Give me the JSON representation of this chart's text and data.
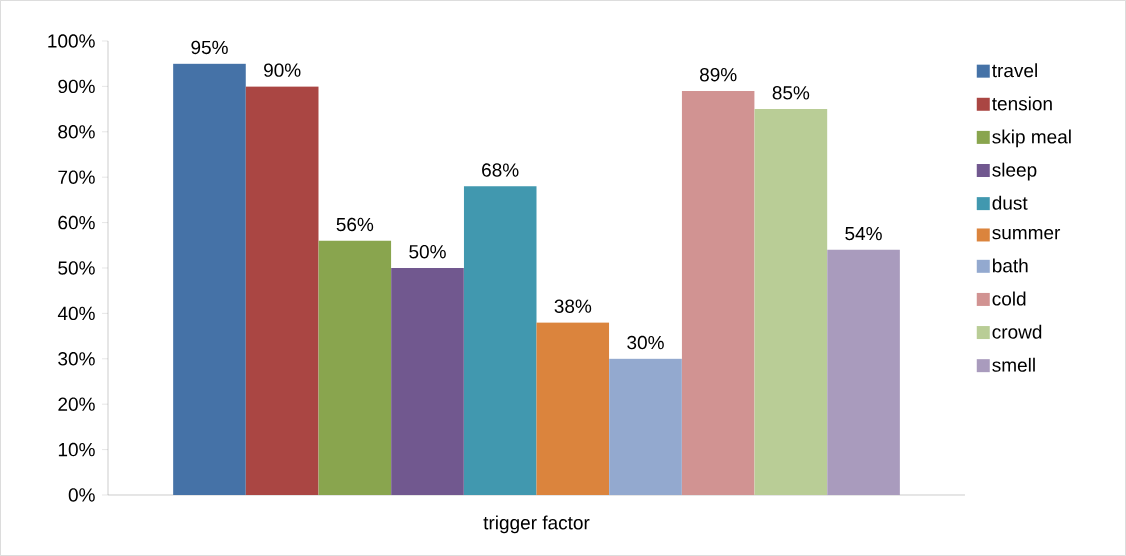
{
  "chart_data": {
    "type": "bar",
    "categories": [
      "trigger factor"
    ],
    "series": [
      {
        "name": "travel",
        "color": "#4572a7",
        "values": [
          95
        ],
        "value_labels": [
          "95%"
        ]
      },
      {
        "name": "tension",
        "color": "#aa4643",
        "values": [
          90
        ],
        "value_labels": [
          "90%"
        ]
      },
      {
        "name": "skip meal",
        "color": "#89a54e",
        "values": [
          56
        ],
        "value_labels": [
          "56%"
        ]
      },
      {
        "name": "sleep",
        "color": "#71588f",
        "values": [
          50
        ],
        "value_labels": [
          "50%"
        ]
      },
      {
        "name": "dust",
        "color": "#4198af",
        "values": [
          68
        ],
        "value_labels": [
          "68%"
        ]
      },
      {
        "name": "summer",
        "color": "#db843d",
        "values": [
          38
        ],
        "value_labels": [
          "38%"
        ]
      },
      {
        "name": "bath",
        "color": "#93a9cf",
        "values": [
          30
        ],
        "value_labels": [
          "30%"
        ]
      },
      {
        "name": "cold",
        "color": "#d19392",
        "values": [
          89
        ],
        "value_labels": [
          "89%"
        ]
      },
      {
        "name": "crowd",
        "color": "#b9cd96",
        "values": [
          85
        ],
        "value_labels": [
          "85%"
        ]
      },
      {
        "name": "smell",
        "color": "#a99bbd",
        "values": [
          54
        ],
        "value_labels": [
          "54%"
        ]
      }
    ],
    "ylim": [
      0,
      100
    ],
    "yticks": [
      {
        "value": 0,
        "label": "0%"
      },
      {
        "value": 10,
        "label": "10%"
      },
      {
        "value": 20,
        "label": "20%"
      },
      {
        "value": 30,
        "label": "30%"
      },
      {
        "value": 40,
        "label": "40%"
      },
      {
        "value": 50,
        "label": "50%"
      },
      {
        "value": 60,
        "label": "60%"
      },
      {
        "value": 70,
        "label": "70%"
      },
      {
        "value": 80,
        "label": "80%"
      },
      {
        "value": 90,
        "label": "90%"
      },
      {
        "value": 100,
        "label": "100%"
      }
    ],
    "legend": "right"
  }
}
